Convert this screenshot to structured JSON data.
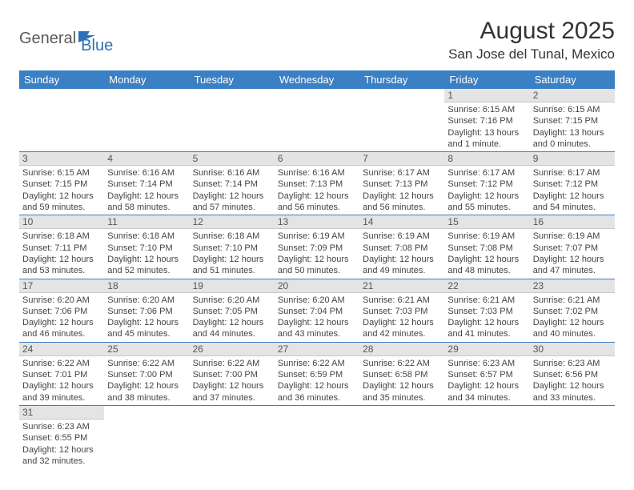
{
  "brand": {
    "name1": "General",
    "name2": "Blue"
  },
  "title": "August 2025",
  "location": "San Jose del Tunal, Mexico",
  "colors": {
    "header_bg": "#3b7fc4",
    "header_fg": "#ffffff",
    "daynum_bg": "#e4e4e4",
    "rule": "#3b7fc4"
  },
  "days": [
    "Sunday",
    "Monday",
    "Tuesday",
    "Wednesday",
    "Thursday",
    "Friday",
    "Saturday"
  ],
  "weeks": [
    [
      null,
      null,
      null,
      null,
      null,
      {
        "n": "1",
        "sr": "6:15 AM",
        "ss": "7:16 PM",
        "dl": "13 hours and 1 minute."
      },
      {
        "n": "2",
        "sr": "6:15 AM",
        "ss": "7:15 PM",
        "dl": "13 hours and 0 minutes."
      }
    ],
    [
      {
        "n": "3",
        "sr": "6:15 AM",
        "ss": "7:15 PM",
        "dl": "12 hours and 59 minutes."
      },
      {
        "n": "4",
        "sr": "6:16 AM",
        "ss": "7:14 PM",
        "dl": "12 hours and 58 minutes."
      },
      {
        "n": "5",
        "sr": "6:16 AM",
        "ss": "7:14 PM",
        "dl": "12 hours and 57 minutes."
      },
      {
        "n": "6",
        "sr": "6:16 AM",
        "ss": "7:13 PM",
        "dl": "12 hours and 56 minutes."
      },
      {
        "n": "7",
        "sr": "6:17 AM",
        "ss": "7:13 PM",
        "dl": "12 hours and 56 minutes."
      },
      {
        "n": "8",
        "sr": "6:17 AM",
        "ss": "7:12 PM",
        "dl": "12 hours and 55 minutes."
      },
      {
        "n": "9",
        "sr": "6:17 AM",
        "ss": "7:12 PM",
        "dl": "12 hours and 54 minutes."
      }
    ],
    [
      {
        "n": "10",
        "sr": "6:18 AM",
        "ss": "7:11 PM",
        "dl": "12 hours and 53 minutes."
      },
      {
        "n": "11",
        "sr": "6:18 AM",
        "ss": "7:10 PM",
        "dl": "12 hours and 52 minutes."
      },
      {
        "n": "12",
        "sr": "6:18 AM",
        "ss": "7:10 PM",
        "dl": "12 hours and 51 minutes."
      },
      {
        "n": "13",
        "sr": "6:19 AM",
        "ss": "7:09 PM",
        "dl": "12 hours and 50 minutes."
      },
      {
        "n": "14",
        "sr": "6:19 AM",
        "ss": "7:08 PM",
        "dl": "12 hours and 49 minutes."
      },
      {
        "n": "15",
        "sr": "6:19 AM",
        "ss": "7:08 PM",
        "dl": "12 hours and 48 minutes."
      },
      {
        "n": "16",
        "sr": "6:19 AM",
        "ss": "7:07 PM",
        "dl": "12 hours and 47 minutes."
      }
    ],
    [
      {
        "n": "17",
        "sr": "6:20 AM",
        "ss": "7:06 PM",
        "dl": "12 hours and 46 minutes."
      },
      {
        "n": "18",
        "sr": "6:20 AM",
        "ss": "7:06 PM",
        "dl": "12 hours and 45 minutes."
      },
      {
        "n": "19",
        "sr": "6:20 AM",
        "ss": "7:05 PM",
        "dl": "12 hours and 44 minutes."
      },
      {
        "n": "20",
        "sr": "6:20 AM",
        "ss": "7:04 PM",
        "dl": "12 hours and 43 minutes."
      },
      {
        "n": "21",
        "sr": "6:21 AM",
        "ss": "7:03 PM",
        "dl": "12 hours and 42 minutes."
      },
      {
        "n": "22",
        "sr": "6:21 AM",
        "ss": "7:03 PM",
        "dl": "12 hours and 41 minutes."
      },
      {
        "n": "23",
        "sr": "6:21 AM",
        "ss": "7:02 PM",
        "dl": "12 hours and 40 minutes."
      }
    ],
    [
      {
        "n": "24",
        "sr": "6:22 AM",
        "ss": "7:01 PM",
        "dl": "12 hours and 39 minutes."
      },
      {
        "n": "25",
        "sr": "6:22 AM",
        "ss": "7:00 PM",
        "dl": "12 hours and 38 minutes."
      },
      {
        "n": "26",
        "sr": "6:22 AM",
        "ss": "7:00 PM",
        "dl": "12 hours and 37 minutes."
      },
      {
        "n": "27",
        "sr": "6:22 AM",
        "ss": "6:59 PM",
        "dl": "12 hours and 36 minutes."
      },
      {
        "n": "28",
        "sr": "6:22 AM",
        "ss": "6:58 PM",
        "dl": "12 hours and 35 minutes."
      },
      {
        "n": "29",
        "sr": "6:23 AM",
        "ss": "6:57 PM",
        "dl": "12 hours and 34 minutes."
      },
      {
        "n": "30",
        "sr": "6:23 AM",
        "ss": "6:56 PM",
        "dl": "12 hours and 33 minutes."
      }
    ],
    [
      {
        "n": "31",
        "sr": "6:23 AM",
        "ss": "6:55 PM",
        "dl": "12 hours and 32 minutes."
      },
      null,
      null,
      null,
      null,
      null,
      null
    ]
  ],
  "labels": {
    "sunrise": "Sunrise: ",
    "sunset": "Sunset: ",
    "daylight": "Daylight: "
  }
}
